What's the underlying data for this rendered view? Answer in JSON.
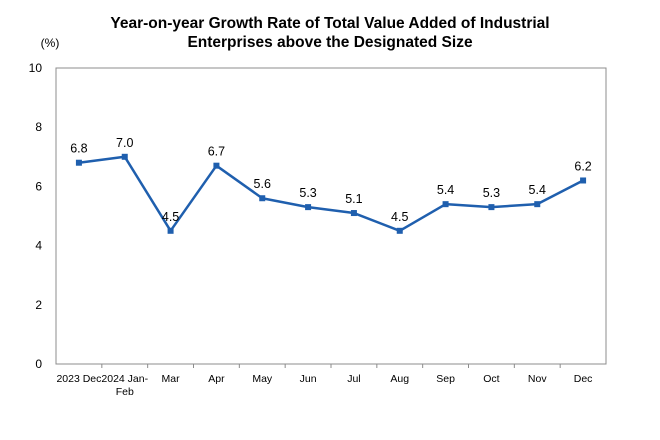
{
  "chart_data": {
    "type": "line",
    "title": [
      "Year-on-year Growth Rate of Total Value Added of Industrial",
      "Enterprises above the Designated Size"
    ],
    "ylabel": "(%)",
    "xlabel": "",
    "ylim": [
      0,
      10
    ],
    "yticks": [
      0,
      2,
      4,
      6,
      8,
      10
    ],
    "grid": false,
    "legend": "none",
    "line_color": "#1F5FAE",
    "categories": [
      [
        "2023 Dec"
      ],
      [
        "2024 Jan-",
        "Feb"
      ],
      [
        "Mar"
      ],
      [
        "Apr"
      ],
      [
        "May"
      ],
      [
        "Jun"
      ],
      [
        "Jul"
      ],
      [
        "Aug"
      ],
      [
        "Sep"
      ],
      [
        "Oct"
      ],
      [
        "Nov"
      ],
      [
        "Dec"
      ]
    ],
    "values": [
      6.8,
      7.0,
      4.5,
      6.7,
      5.6,
      5.3,
      5.1,
      4.5,
      5.4,
      5.3,
      5.4,
      6.2
    ],
    "data_labels": [
      "6.8",
      "7.0",
      "4.5",
      "6.7",
      "5.6",
      "5.3",
      "5.1",
      "4.5",
      "5.4",
      "5.3",
      "5.4",
      "6.2"
    ]
  }
}
